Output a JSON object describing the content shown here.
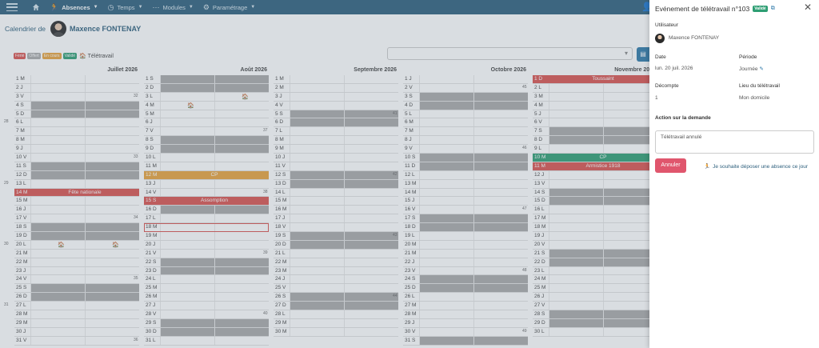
{
  "navbar": {
    "items": [
      {
        "icon": "user-running-icon",
        "label": "Absences",
        "active": true
      },
      {
        "icon": "clock-icon",
        "label": "Temps",
        "active": false
      },
      {
        "icon": "dots-icon",
        "label": "Modules",
        "active": false
      },
      {
        "icon": "gear-icon",
        "label": "Paramétrage",
        "active": false
      }
    ]
  },
  "page": {
    "calendar_label": "Calendrier de",
    "user_name": "Maxence FONTENAY"
  },
  "legend": [
    {
      "label": "Férié",
      "color": "#d9534f"
    },
    {
      "label": "Offert",
      "color": "#aaaaaa"
    },
    {
      "label": "En cours",
      "color": "#e8a33c"
    },
    {
      "label": "Validé",
      "color": "#2e9e73"
    }
  ],
  "legend_teletravail": "Télétravail",
  "months": [
    {
      "name": "Juillet 2026",
      "days": [
        "1 M",
        "2 J",
        "3 V",
        "4 S",
        "5 D",
        "6 L",
        "7 M",
        "8 M",
        "9 J",
        "10 V",
        "11 S",
        "12 D",
        "13 L",
        "14 M",
        "15 M",
        "16 J",
        "17 V",
        "18 S",
        "19 D",
        "20 L",
        "21 M",
        "22 M",
        "23 J",
        "24 V",
        "25 S",
        "26 D",
        "27 L",
        "28 M",
        "29 M",
        "30 J",
        "31 V"
      ]
    },
    {
      "name": "Août 2026",
      "days": [
        "1 S",
        "2 D",
        "3 L",
        "4 M",
        "5 M",
        "6 J",
        "7 V",
        "8 S",
        "9 D",
        "10 L",
        "11 M",
        "12 M",
        "13 J",
        "14 V",
        "15 S",
        "16 D",
        "17 L",
        "18 M",
        "19 M",
        "20 J",
        "21 V",
        "22 S",
        "23 D",
        "24 L",
        "25 M",
        "26 M",
        "27 J",
        "28 V",
        "29 S",
        "30 D",
        "31 L"
      ]
    },
    {
      "name": "Septembre 2026",
      "days": [
        "1 M",
        "2 M",
        "3 J",
        "4 V",
        "5 S",
        "6 D",
        "7 L",
        "8 M",
        "9 M",
        "10 J",
        "11 V",
        "12 S",
        "13 D",
        "14 L",
        "15 M",
        "16 M",
        "17 J",
        "18 V",
        "19 S",
        "20 D",
        "21 L",
        "22 M",
        "23 M",
        "24 J",
        "25 V",
        "26 S",
        "27 D",
        "28 L",
        "29 M",
        "30 M"
      ]
    },
    {
      "name": "Octobre 2026",
      "days": [
        "1 J",
        "2 V",
        "3 S",
        "4 D",
        "5 L",
        "6 M",
        "7 M",
        "8 J",
        "9 V",
        "10 S",
        "11 D",
        "12 L",
        "13 M",
        "14 M",
        "15 J",
        "16 V",
        "17 S",
        "18 D",
        "19 L",
        "20 M",
        "21 M",
        "22 J",
        "23 V",
        "24 S",
        "25 D",
        "26 L",
        "27 M",
        "28 M",
        "29 J",
        "30 V",
        "31 S"
      ]
    },
    {
      "name": "Novembre 2026",
      "days": [
        "1 D",
        "2 L",
        "3 M",
        "4 M",
        "5 J",
        "6 V",
        "7 S",
        "8 D",
        "9 L",
        "10 M",
        "11 M",
        "12 J",
        "13 V",
        "14 S",
        "15 D",
        "16 L",
        "17 M",
        "18 M",
        "19 J",
        "20 V",
        "21 S",
        "22 D",
        "23 L",
        "24 M",
        "25 M",
        "26 J",
        "27 V",
        "28 S",
        "29 D",
        "30 L"
      ]
    }
  ],
  "week_numbers": [
    {
      "month": 0,
      "day": 6,
      "label": "28"
    },
    {
      "month": 0,
      "day": 13,
      "label": "29"
    },
    {
      "month": 0,
      "day": 20,
      "label": "30"
    },
    {
      "month": 0,
      "day": 27,
      "label": "31"
    },
    {
      "month": 1,
      "day": 3,
      "label": "32"
    },
    {
      "month": 1,
      "day": 10,
      "label": "33"
    },
    {
      "month": 1,
      "day": 17,
      "label": "34"
    },
    {
      "month": 1,
      "day": 24,
      "label": "35"
    },
    {
      "month": 1,
      "day": 31,
      "label": "36"
    },
    {
      "month": 2,
      "day": 7,
      "label": "37"
    },
    {
      "month": 2,
      "day": 14,
      "label": "38"
    },
    {
      "month": 2,
      "day": 21,
      "label": "39"
    },
    {
      "month": 2,
      "day": 28,
      "label": "40"
    },
    {
      "month": 3,
      "day": 5,
      "label": "41"
    },
    {
      "month": 3,
      "day": 12,
      "label": "42"
    },
    {
      "month": 3,
      "day": 19,
      "label": "43"
    },
    {
      "month": 3,
      "day": 26,
      "label": "44"
    },
    {
      "month": 4,
      "day": 2,
      "label": "45"
    },
    {
      "month": 4,
      "day": 9,
      "label": "46"
    },
    {
      "month": 4,
      "day": 16,
      "label": "47"
    },
    {
      "month": 4,
      "day": 23,
      "label": "48"
    },
    {
      "month": 4,
      "day": 30,
      "label": "49"
    }
  ],
  "events": [
    {
      "month": 0,
      "day": 14,
      "label": "Fête nationale",
      "type": "ferie"
    },
    {
      "month": 1,
      "day": 12,
      "label": "CP",
      "type": "cp"
    },
    {
      "month": 1,
      "day": 15,
      "label": "Assomption",
      "type": "ferie"
    },
    {
      "month": 4,
      "day": 1,
      "label": "Toussaint",
      "type": "ferie"
    },
    {
      "month": 4,
      "day": 10,
      "label": "CP",
      "type": "valide"
    },
    {
      "month": 4,
      "day": 11,
      "label": "Armistice 1918",
      "type": "ferie"
    }
  ],
  "teletravail_marks": [
    {
      "month": 0,
      "day": 20,
      "half": "am"
    },
    {
      "month": 0,
      "day": 20,
      "half": "pm"
    },
    {
      "month": 1,
      "day": 3,
      "half": "pm"
    },
    {
      "month": 1,
      "day": 4,
      "half": "am"
    }
  ],
  "selected_day": {
    "month": 1,
    "day": 18
  },
  "panel": {
    "title": "Evénement de télétravail n°103",
    "status": "Validé",
    "utilisateur_label": "Utilisateur",
    "utilisateur_value": "Maxence FONTENAY",
    "date_label": "Date",
    "date_value": "lun. 20 juil. 2026",
    "periode_label": "Période",
    "periode_value": "Journée",
    "decompte_label": "Décompte",
    "decompte_value": "1",
    "lieu_label": "Lieu du télétravail",
    "lieu_value": "Mon domicile",
    "action_label": "Action sur la demande",
    "textarea_value": "Télétravail annulé",
    "annuler_label": "Annuler",
    "absence_link": "Je souhaite déposer une absence ce jour"
  },
  "colors": {
    "navbar": "#2d5f7c",
    "weekend": "#a9a9a9",
    "ferie": "#d9534f",
    "cp": "#e8a33c",
    "valide": "#2e9e73",
    "annuler": "#e0566d"
  }
}
